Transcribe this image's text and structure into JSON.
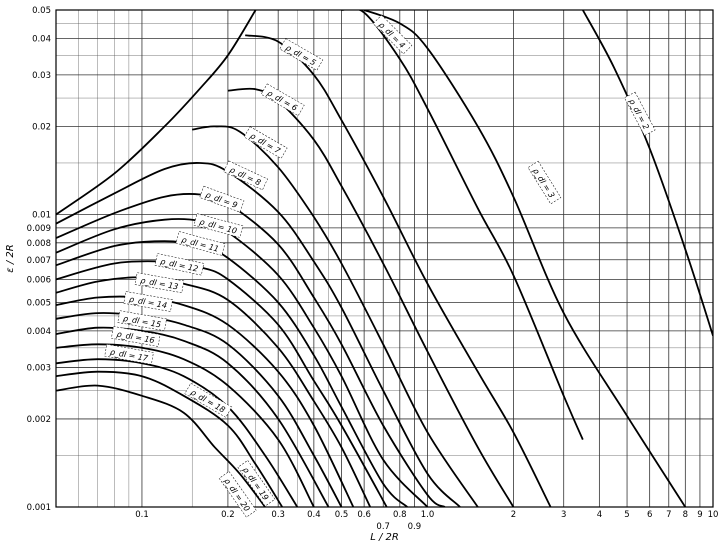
{
  "chart_data": {
    "type": "line",
    "title": "",
    "xlabel": "L / 2R",
    "ylabel": "ε / 2R",
    "xscale": "log",
    "yscale": "log",
    "xlim": [
      0.05,
      10
    ],
    "ylim": [
      0.001,
      0.05
    ],
    "grid": true,
    "x_ticks": [
      {
        "value": 0.1,
        "label": "0.1"
      },
      {
        "value": 0.2,
        "label": "0.2"
      },
      {
        "value": 0.3,
        "label": "0.3"
      },
      {
        "value": 0.4,
        "label": "0.4"
      },
      {
        "value": 0.5,
        "label": "0.5"
      },
      {
        "value": 0.6,
        "label": "0.6"
      },
      {
        "value": 0.7,
        "label": "0.7"
      },
      {
        "value": 0.8,
        "label": "0.8"
      },
      {
        "value": 0.9,
        "label": "0.9"
      },
      {
        "value": 1.0,
        "label": "1.0"
      },
      {
        "value": 2,
        "label": "2"
      },
      {
        "value": 3,
        "label": "3"
      },
      {
        "value": 4,
        "label": "4"
      },
      {
        "value": 5,
        "label": "5"
      },
      {
        "value": 6,
        "label": "6"
      },
      {
        "value": 7,
        "label": "7"
      },
      {
        "value": 8,
        "label": "8"
      },
      {
        "value": 9,
        "label": "9"
      },
      {
        "value": 10,
        "label": "10"
      }
    ],
    "y_ticks": [
      {
        "value": 0.001,
        "label": "0.001"
      },
      {
        "value": 0.002,
        "label": "0.002"
      },
      {
        "value": 0.003,
        "label": "0.003"
      },
      {
        "value": 0.004,
        "label": "0.004"
      },
      {
        "value": 0.005,
        "label": "0.005"
      },
      {
        "value": 0.006,
        "label": "0.006"
      },
      {
        "value": 0.007,
        "label": "0.007"
      },
      {
        "value": 0.008,
        "label": "0.008"
      },
      {
        "value": 0.009,
        "label": "0.009"
      },
      {
        "value": 0.01,
        "label": "0.01"
      },
      {
        "value": 0.02,
        "label": "0.02"
      },
      {
        "value": 0.03,
        "label": "0.03"
      },
      {
        "value": 0.04,
        "label": "0.04"
      },
      {
        "value": 0.05,
        "label": "0.05"
      }
    ],
    "series": [
      {
        "label": "ρ_dl = 2",
        "x": [
          3.5,
          4.5,
          6.0,
          8.0,
          10.0
        ],
        "y": [
          0.05,
          0.0318,
          0.0168,
          0.0076,
          0.00385
        ]
      },
      {
        "label": "ρ_dl = 3",
        "x": [
          0.6,
          0.8,
          1.0,
          1.5,
          2.0,
          3.0,
          5.0,
          8.0
        ],
        "y": [
          0.05,
          0.045,
          0.037,
          0.02,
          0.0115,
          0.0046,
          0.00205,
          0.001
        ]
      },
      {
        "label": "ρ_dl = 4",
        "x": [
          0.5,
          0.6,
          0.8,
          1.0,
          1.5,
          2.0,
          3.0,
          3.5
        ],
        "y": [
          0.05,
          0.049,
          0.034,
          0.023,
          0.0105,
          0.0062,
          0.0024,
          0.0017
        ]
      },
      {
        "label": "ρ_dl = 5",
        "x": [
          0.23,
          0.3,
          0.4,
          0.5,
          0.7,
          1.0,
          1.5,
          2.0,
          2.7
        ],
        "y": [
          0.041,
          0.039,
          0.03,
          0.021,
          0.0115,
          0.0058,
          0.0029,
          0.0018,
          0.001
        ]
      },
      {
        "label": "ρ_dl = 6",
        "x": [
          0.2,
          0.25,
          0.3,
          0.4,
          0.5,
          0.7,
          1.0,
          1.5,
          2.0
        ],
        "y": [
          0.0265,
          0.0268,
          0.0245,
          0.018,
          0.0125,
          0.0068,
          0.0034,
          0.0016,
          0.001
        ]
      },
      {
        "label": "ρ_dl = 7",
        "x": [
          0.15,
          0.18,
          0.22,
          0.3,
          0.4,
          0.5,
          0.7,
          1.0,
          1.5
        ],
        "y": [
          0.0195,
          0.02,
          0.0192,
          0.0145,
          0.0098,
          0.0068,
          0.0036,
          0.0018,
          0.001
        ]
      },
      {
        "label": "ρ_dl = 8",
        "x": [
          0.05,
          0.08,
          0.12,
          0.16,
          0.2,
          0.3,
          0.4,
          0.5,
          0.7,
          1.0,
          1.3
        ],
        "y": [
          0.0093,
          0.0118,
          0.0143,
          0.015,
          0.014,
          0.0102,
          0.0069,
          0.0048,
          0.0025,
          0.0013,
          0.001
        ]
      },
      {
        "label": "ρ_dl = 9",
        "x": [
          0.05,
          0.08,
          0.12,
          0.16,
          0.2,
          0.3,
          0.4,
          0.5,
          0.7,
          1.0,
          1.15
        ],
        "y": [
          0.0083,
          0.0101,
          0.0115,
          0.0117,
          0.0109,
          0.0079,
          0.0052,
          0.0036,
          0.0019,
          0.0011,
          0.001
        ]
      },
      {
        "label": "ρ_dl = 10",
        "x": [
          0.05,
          0.08,
          0.12,
          0.16,
          0.2,
          0.3,
          0.4,
          0.5,
          0.7,
          1.0
        ],
        "y": [
          0.0074,
          0.0089,
          0.0096,
          0.0095,
          0.0087,
          0.0062,
          0.0041,
          0.0028,
          0.00145,
          0.001
        ]
      },
      {
        "label": "ρ_dl = 11",
        "x": [
          0.05,
          0.08,
          0.12,
          0.16,
          0.2,
          0.3,
          0.4,
          0.5,
          0.7,
          0.85
        ],
        "y": [
          0.0067,
          0.0078,
          0.0081,
          0.0078,
          0.0071,
          0.005,
          0.0033,
          0.0022,
          0.0012,
          0.001
        ]
      },
      {
        "label": "ρ_dl = 12",
        "x": [
          0.05,
          0.08,
          0.12,
          0.16,
          0.2,
          0.3,
          0.4,
          0.5,
          0.72
        ],
        "y": [
          0.006,
          0.0068,
          0.0069,
          0.0066,
          0.006,
          0.0042,
          0.0027,
          0.0019,
          0.001
        ]
      },
      {
        "label": "ρ_dl = 13",
        "x": [
          0.05,
          0.07,
          0.1,
          0.14,
          0.2,
          0.3,
          0.4,
          0.5,
          0.63
        ],
        "y": [
          0.0054,
          0.0059,
          0.0061,
          0.0058,
          0.0051,
          0.0035,
          0.0023,
          0.0016,
          0.001
        ]
      },
      {
        "label": "ρ_dl = 14",
        "x": [
          0.05,
          0.07,
          0.1,
          0.14,
          0.2,
          0.3,
          0.4,
          0.55
        ],
        "y": [
          0.0049,
          0.0052,
          0.0052,
          0.0049,
          0.0042,
          0.0029,
          0.0019,
          0.001
        ]
      },
      {
        "label": "ρ_dl = 15",
        "x": [
          0.05,
          0.07,
          0.1,
          0.14,
          0.2,
          0.3,
          0.4,
          0.5
        ],
        "y": [
          0.0044,
          0.0046,
          0.0045,
          0.0042,
          0.0036,
          0.0024,
          0.0015,
          0.001
        ]
      },
      {
        "label": "ρ_dl = 16",
        "x": [
          0.05,
          0.07,
          0.1,
          0.14,
          0.2,
          0.3,
          0.45
        ],
        "y": [
          0.0039,
          0.0041,
          0.004,
          0.0037,
          0.0031,
          0.002,
          0.001
        ]
      },
      {
        "label": "ρ_dl = 17",
        "x": [
          0.05,
          0.07,
          0.1,
          0.14,
          0.2,
          0.3,
          0.4
        ],
        "y": [
          0.0035,
          0.0036,
          0.0035,
          0.0032,
          0.0026,
          0.0017,
          0.001
        ]
      },
      {
        "label": "ρ_dl = 18",
        "x": [
          0.05,
          0.07,
          0.1,
          0.14,
          0.2,
          0.27,
          0.35
        ],
        "y": [
          0.0031,
          0.0032,
          0.0031,
          0.0028,
          0.0022,
          0.0015,
          0.001
        ]
      },
      {
        "label": "ρ_dl = 19",
        "x": [
          0.05,
          0.07,
          0.1,
          0.14,
          0.2,
          0.25,
          0.31
        ],
        "y": [
          0.0028,
          0.0029,
          0.0028,
          0.0024,
          0.0019,
          0.0014,
          0.001
        ]
      },
      {
        "label": "ρ_dl = 20",
        "x": [
          0.05,
          0.07,
          0.1,
          0.14,
          0.18,
          0.22,
          0.27
        ],
        "y": [
          0.0025,
          0.0026,
          0.0024,
          0.0021,
          0.0016,
          0.0013,
          0.001
        ]
      },
      {
        "label": "envelope",
        "x": [
          0.05,
          0.08,
          0.12,
          0.16,
          0.2,
          0.25
        ],
        "y": [
          0.01,
          0.0138,
          0.02,
          0.027,
          0.035,
          0.05
        ]
      }
    ],
    "curve_labels": [
      {
        "text": "ρ_dl = 2",
        "x": 5.5,
        "y": 0.022,
        "angle": 62
      },
      {
        "text": "ρ_dl = 3",
        "x": 2.55,
        "y": 0.0128,
        "angle": 58
      },
      {
        "text": "ρ_dl = 4",
        "x": 0.75,
        "y": 0.041,
        "angle": 45
      },
      {
        "text": "ρ_dl = 5",
        "x": 0.36,
        "y": 0.035,
        "angle": 30
      },
      {
        "text": "ρ_dl = 6",
        "x": 0.31,
        "y": 0.0245,
        "angle": 30
      },
      {
        "text": "ρ_dl = 7",
        "x": 0.27,
        "y": 0.0175,
        "angle": 30
      },
      {
        "text": "ρ_dl = 8",
        "x": 0.23,
        "y": 0.0135,
        "angle": 25
      },
      {
        "text": "ρ_dl = 9",
        "x": 0.19,
        "y": 0.0112,
        "angle": 20
      },
      {
        "text": "ρ_dl = 10",
        "x": 0.185,
        "y": 0.0091,
        "angle": 15
      },
      {
        "text": "ρ_dl = 11",
        "x": 0.16,
        "y": 0.0079,
        "angle": 15
      },
      {
        "text": "ρ_dl = 12",
        "x": 0.135,
        "y": 0.0067,
        "angle": 12
      },
      {
        "text": "ρ_dl = 13",
        "x": 0.115,
        "y": 0.0058,
        "angle": 10
      },
      {
        "text": "ρ_dl = 14",
        "x": 0.105,
        "y": 0.005,
        "angle": 10
      },
      {
        "text": "ρ_dl = 15",
        "x": 0.1,
        "y": 0.0043,
        "angle": 10
      },
      {
        "text": "ρ_dl = 16",
        "x": 0.095,
        "y": 0.0038,
        "angle": 10
      },
      {
        "text": "ρ_dl = 17",
        "x": 0.09,
        "y": 0.0033,
        "angle": 10
      },
      {
        "text": "ρ_dl = 18",
        "x": 0.17,
        "y": 0.0023,
        "angle": 30
      },
      {
        "text": "ρ_dl = 19",
        "x": 0.25,
        "y": 0.0012,
        "angle": 55
      },
      {
        "text": "ρ_dl = 20",
        "x": 0.215,
        "y": 0.0011,
        "angle": 55
      }
    ]
  }
}
